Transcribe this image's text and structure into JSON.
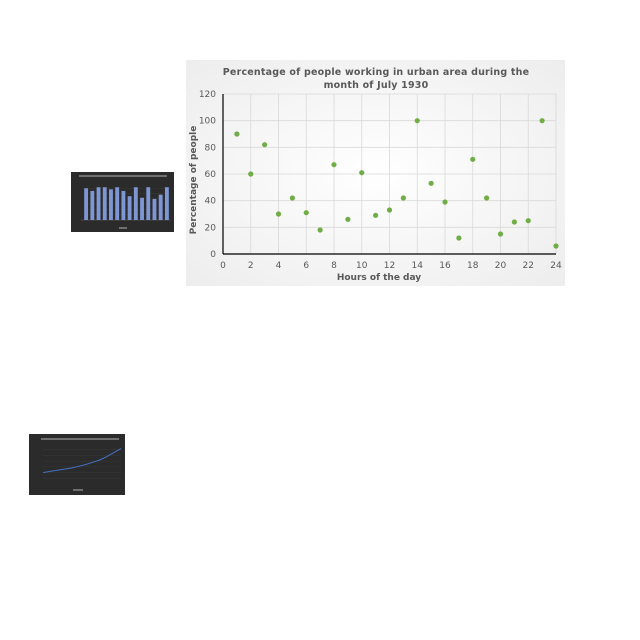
{
  "chart_data": [
    {
      "type": "scatter",
      "title_lines": [
        "Percentage of people working in urban area during the",
        "month of July 1930"
      ],
      "xlabel": "Hours of the day",
      "ylabel": "Percentage of people",
      "xlim": [
        0,
        24
      ],
      "ylim": [
        0,
        120
      ],
      "x_ticks": [
        0,
        2,
        4,
        6,
        8,
        10,
        12,
        14,
        16,
        18,
        20,
        22,
        24
      ],
      "y_ticks": [
        0,
        20,
        40,
        60,
        80,
        100,
        120
      ],
      "grid": true,
      "legend": "none",
      "colors": {
        "marker": "#70ad47",
        "background": "#f2f2f2",
        "grid": "#d9d9d9",
        "axis": "#000000"
      },
      "points": [
        {
          "x": 1,
          "y": 90
        },
        {
          "x": 2,
          "y": 60
        },
        {
          "x": 3,
          "y": 82
        },
        {
          "x": 4,
          "y": 30
        },
        {
          "x": 5,
          "y": 42
        },
        {
          "x": 6,
          "y": 31
        },
        {
          "x": 7,
          "y": 18
        },
        {
          "x": 8,
          "y": 67
        },
        {
          "x": 9,
          "y": 26
        },
        {
          "x": 10,
          "y": 61
        },
        {
          "x": 11,
          "y": 29
        },
        {
          "x": 12,
          "y": 33
        },
        {
          "x": 13,
          "y": 42
        },
        {
          "x": 14,
          "y": 100
        },
        {
          "x": 15,
          "y": 53
        },
        {
          "x": 16,
          "y": 39
        },
        {
          "x": 17,
          "y": 12
        },
        {
          "x": 18,
          "y": 71
        },
        {
          "x": 19,
          "y": 42
        },
        {
          "x": 20,
          "y": 15
        },
        {
          "x": 21,
          "y": 24
        },
        {
          "x": 22,
          "y": 25
        },
        {
          "x": 23,
          "y": 100
        },
        {
          "x": 24,
          "y": 6
        }
      ]
    },
    {
      "type": "bar",
      "values": [
        60,
        55,
        62,
        62,
        58,
        62,
        55,
        45,
        62,
        42,
        62,
        40,
        48,
        62
      ],
      "colors": {
        "bar": "#7f96d4",
        "background": "#2b2b2b"
      }
    },
    {
      "type": "line",
      "values": [
        20,
        22,
        24,
        26,
        28,
        31,
        34,
        38,
        42,
        48,
        55,
        62
      ],
      "colors": {
        "line": "#4472c4",
        "background": "#2b2b2b"
      }
    }
  ]
}
